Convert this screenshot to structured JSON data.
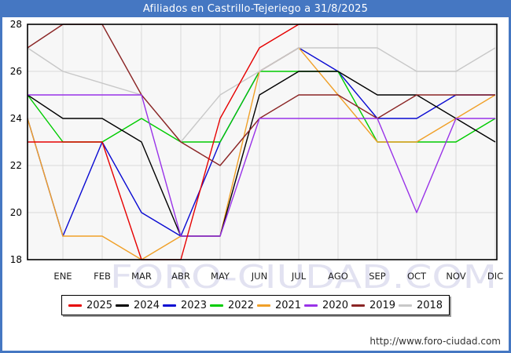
{
  "window": {
    "title": "Afiliados en Castrillo-Tejeriego a 31/8/2025",
    "titlebar_color": "#4577c2"
  },
  "watermark": "FORO-CIUDAD.COM",
  "footer": {
    "url": "http://www.foro-ciudad.com"
  },
  "chart_data": {
    "type": "line",
    "title": "Afiliados en Castrillo-Tejeriego a 31/8/2025",
    "categories": [
      "ENE",
      "FEB",
      "MAR",
      "ABR",
      "MAY",
      "JUN",
      "JUL",
      "AGO",
      "SEP",
      "OCT",
      "NOV",
      "DIC"
    ],
    "x_note": "each series also shows the previous-December value drawn on the left axis before ENE",
    "ylabel": "",
    "xlabel": "",
    "ylim": [
      18,
      28
    ],
    "y_ticks": [
      28,
      26,
      24,
      22,
      20,
      18
    ],
    "grid": true,
    "legend_position": "bottom",
    "series": [
      {
        "name": "2025",
        "color": "#e60000",
        "prev_dec": 23,
        "values": [
          23,
          23,
          18,
          18,
          24,
          27,
          28,
          28,
          null,
          null,
          null,
          null
        ]
      },
      {
        "name": "2024",
        "color": "#000000",
        "prev_dec": 25,
        "values": [
          24,
          24,
          23,
          19,
          19,
          25,
          26,
          26,
          25,
          25,
          24,
          23
        ]
      },
      {
        "name": "2023",
        "color": "#0a0ad2",
        "prev_dec": 24,
        "values": [
          19,
          23,
          20,
          19,
          23,
          26,
          27,
          26,
          24,
          24,
          25,
          25
        ]
      },
      {
        "name": "2022",
        "color": "#00cc00",
        "prev_dec": 25,
        "values": [
          23,
          23,
          24,
          23,
          23,
          26,
          26,
          26,
          23,
          23,
          23,
          24
        ]
      },
      {
        "name": "2021",
        "color": "#f0a028",
        "prev_dec": 24,
        "values": [
          19,
          19,
          18,
          19,
          19,
          26,
          27,
          25,
          23,
          23,
          24,
          25
        ]
      },
      {
        "name": "2020",
        "color": "#9932e8",
        "prev_dec": 25,
        "values": [
          25,
          25,
          25,
          19,
          19,
          24,
          24,
          24,
          24,
          20,
          24,
          24
        ]
      },
      {
        "name": "2019",
        "color": "#8b2525",
        "prev_dec": 27,
        "values": [
          28,
          28,
          25,
          23,
          22,
          24,
          25,
          25,
          24,
          25,
          25,
          25
        ]
      },
      {
        "name": "2018",
        "color": "#c8c8c8",
        "prev_dec": 27,
        "values": [
          26,
          null,
          25,
          23,
          25,
          26,
          27,
          27,
          27,
          26,
          26,
          27
        ]
      }
    ]
  }
}
